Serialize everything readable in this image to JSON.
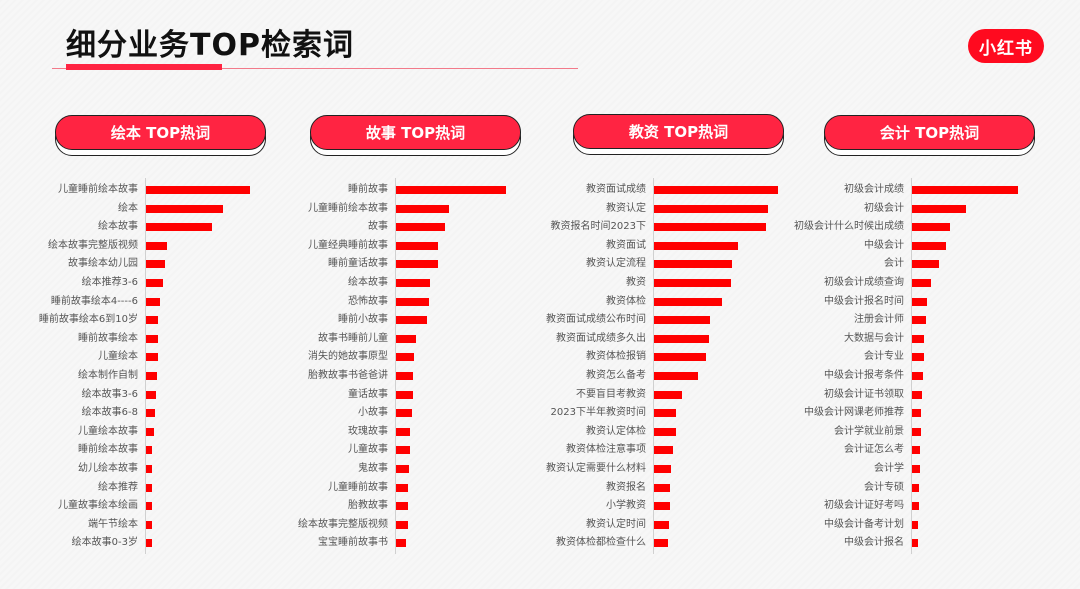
{
  "title": "细分业务TOP检索词",
  "logo": "小红书",
  "colors": {
    "accent": "#ff2442",
    "bar": "#ff0000"
  },
  "chart_data": [
    {
      "type": "bar",
      "orientation": "horizontal",
      "title": "绘本 TOP热词",
      "categories": [
        "儿童睡前绘本故事",
        "绘本",
        "绘本故事",
        "绘本故事完整版视频",
        "故事绘本幼儿园",
        "绘本推荐3-6",
        "睡前故事绘本4----6",
        "睡前故事绘本6到10岁",
        "睡前故事绘本",
        "儿童绘本",
        "绘本制作自制",
        "绘本故事3-6",
        "绘本故事6-8",
        "儿童绘本故事",
        "睡前绘本故事",
        "幼儿绘本故事",
        "绘本推荐",
        "儿童故事绘本绘画",
        "端午节绘本",
        "绘本故事0-3岁"
      ],
      "values": [
        104,
        77,
        66,
        21,
        19,
        17,
        14,
        12,
        12,
        12,
        11,
        10,
        9,
        8,
        6,
        6,
        6,
        6,
        6,
        6
      ],
      "xlabel": "",
      "ylabel": ""
    },
    {
      "type": "bar",
      "orientation": "horizontal",
      "title": "故事 TOP热词",
      "categories": [
        "睡前故事",
        "儿童睡前绘本故事",
        "故事",
        "儿童经典睡前故事",
        "睡前童话故事",
        "绘本故事",
        "恐怖故事",
        "睡前小故事",
        "故事书睡前儿童",
        "消失的她故事原型",
        "胎教故事书爸爸讲",
        "童话故事",
        "小故事",
        "玫瑰故事",
        "儿童故事",
        "鬼故事",
        "儿童睡前故事",
        "胎教故事",
        "绘本故事完整版视频",
        "宝宝睡前故事书"
      ],
      "values": [
        110,
        53,
        49,
        42,
        42,
        34,
        33,
        31,
        20,
        18,
        17,
        17,
        16,
        14,
        14,
        13,
        12,
        12,
        12,
        10
      ],
      "xlabel": "",
      "ylabel": ""
    },
    {
      "type": "bar",
      "orientation": "horizontal",
      "title": "教资 TOP热词",
      "categories": [
        "教资面试成绩",
        "教资认定",
        "教资报名时间2023下",
        "教资面试",
        "教资认定流程",
        "教资",
        "教资体检",
        "教资面试成绩公布时间",
        "教资面试成绩多久出",
        "教资体检报销",
        "教资怎么备考",
        "不要盲目考教资",
        "2023下半年教资时间",
        "教资认定体检",
        "教资体检注意事项",
        "教资认定需要什么材料",
        "教资报名",
        "小学教资",
        "教资认定时间",
        "教资体检都检查什么"
      ],
      "values": [
        124,
        114,
        112,
        84,
        78,
        77,
        68,
        56,
        55,
        52,
        44,
        28,
        22,
        22,
        19,
        17,
        16,
        16,
        15,
        14
      ],
      "xlabel": "",
      "ylabel": ""
    },
    {
      "type": "bar",
      "orientation": "horizontal",
      "title": "会计 TOP热词",
      "categories": [
        "初级会计成绩",
        "初级会计",
        "初级会计什么时候出成绩",
        "中级会计",
        "会计",
        "初级会计成绩查询",
        "中级会计报名时间",
        "注册会计师",
        "大数据与会计",
        "会计专业",
        "中级会计报考条件",
        "初级会计证书领取",
        "中级会计网课老师推荐",
        "会计学就业前景",
        "会计证怎么考",
        "会计学",
        "会计专硕",
        "初级会计证好考吗",
        "中级会计备考计划",
        "中级会计报名"
      ],
      "values": [
        106,
        54,
        38,
        34,
        27,
        19,
        15,
        14,
        12,
        12,
        11,
        10,
        9,
        9,
        8,
        8,
        7,
        7,
        6,
        6
      ],
      "xlabel": "",
      "ylabel": ""
    }
  ]
}
